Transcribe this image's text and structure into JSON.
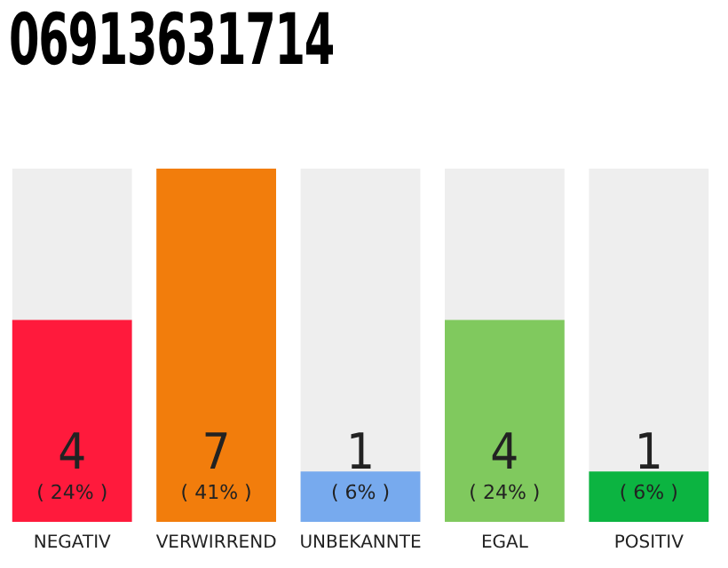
{
  "chart_data": {
    "type": "bar",
    "title": "06913631714",
    "categories": [
      "NEGATIV",
      "VERWIRREND",
      "UNBEKANNTE",
      "EGAL",
      "POSITIV"
    ],
    "values": [
      4,
      7,
      1,
      4,
      1
    ],
    "colors": [
      "#ff1a3c",
      "#f27d0c",
      "#77aaee",
      "#80c95e",
      "#0cb441"
    ],
    "data_labels": true,
    "grid": false,
    "legend": false,
    "annotations": [
      {
        "text": "( 24% )",
        "x": "NEGATIV",
        "y": 0
      },
      {
        "text": "( 41% )",
        "x": "VERWIRREND",
        "y": 0
      },
      {
        "text": "( 6% )",
        "x": "UNBEKANNTE",
        "y": 0
      },
      {
        "text": "( 24% )",
        "x": "EGAL",
        "y": 0
      },
      {
        "text": "( 6% )",
        "x": "POSITIV",
        "y": 0
      }
    ]
  }
}
